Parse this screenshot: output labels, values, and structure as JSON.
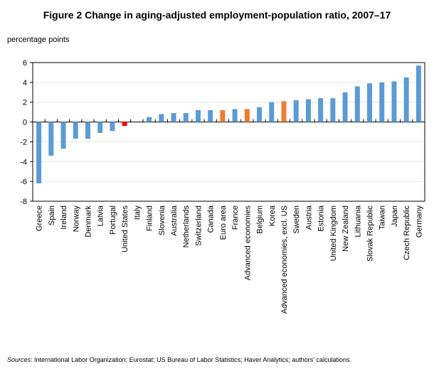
{
  "chart_data": {
    "type": "bar",
    "title": "Figure 2 Change in aging-adjusted employment-population ratio, 2007–17",
    "ylabel": "percentage points",
    "xlabel": "",
    "ylim": [
      -8,
      6
    ],
    "yticks": [
      -8,
      -6,
      -4,
      -2,
      0,
      2,
      4,
      6
    ],
    "grid": true,
    "categories": [
      "Greece",
      "Spain",
      "Ireland",
      "Norway",
      "Denmark",
      "Latvia",
      "Portugal",
      "United States",
      "Italy",
      "Finland",
      "Slovenia",
      "Australia",
      "Netherlands",
      "Switzerland",
      "Canada",
      "Euro area",
      "France",
      "Advanced economies",
      "Belgium",
      "Korea",
      "Advanced economies, excl. US",
      "Sweden",
      "Austria",
      "Estonia",
      "United Kingdom",
      "New Zealand",
      "Lithuania",
      "Slovak Republic",
      "Taiwan",
      "Japan",
      "Czech Republic",
      "Germany"
    ],
    "values": [
      -6.2,
      -3.4,
      -2.7,
      -1.7,
      -1.7,
      -1.1,
      -0.9,
      -0.4,
      0.0,
      0.5,
      0.8,
      0.9,
      0.9,
      1.2,
      1.2,
      1.2,
      1.3,
      1.3,
      1.5,
      2.0,
      2.1,
      2.2,
      2.3,
      2.4,
      2.4,
      3.0,
      3.6,
      3.9,
      4.0,
      4.1,
      4.5,
      5.7
    ],
    "bar_colors": {
      "default": "#5B9BD5",
      "aggregate": "#ED7D31",
      "highlight": "#FF0000"
    },
    "aggregate_categories": [
      "Euro area",
      "Advanced economies",
      "Advanced economies, excl. US"
    ],
    "highlight_categories": [
      "United States"
    ]
  },
  "sources": {
    "label": "Sources",
    "text": ": International Labor Organization;  Eurostat; US Bureau of Labor Statistics; Haver Analytics; authors' calculations."
  }
}
